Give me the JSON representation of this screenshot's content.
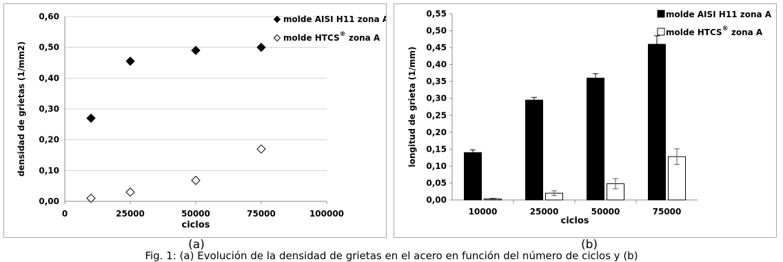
{
  "chart_data": [
    {
      "type": "scatter",
      "xlabel": "ciclos",
      "ylabel": "densidad de grietas (1/mm2)",
      "xlim": [
        0,
        100000
      ],
      "ylim": [
        0,
        0.6
      ],
      "x_ticks": [
        "0",
        "25000",
        "50000",
        "75000",
        "100000"
      ],
      "y_ticks": [
        "0,00",
        "0,10",
        "0,20",
        "0,30",
        "0,40",
        "0,50",
        "0,60"
      ],
      "grid": "horizontal",
      "legend_position": "top-right",
      "series": [
        {
          "name": "molde AISI H11 zona A",
          "marker": "filled-diamond",
          "color": "#000000",
          "points": [
            {
              "x": 10000,
              "y": 0.27
            },
            {
              "x": 25000,
              "y": 0.455
            },
            {
              "x": 50000,
              "y": 0.49
            },
            {
              "x": 75000,
              "y": 0.5
            }
          ]
        },
        {
          "name": "molde HTCS® zona A",
          "marker": "hollow-diamond",
          "color": "#000000",
          "points": [
            {
              "x": 10000,
              "y": 0.01
            },
            {
              "x": 25000,
              "y": 0.03
            },
            {
              "x": 50000,
              "y": 0.068
            },
            {
              "x": 75000,
              "y": 0.17
            }
          ]
        }
      ]
    },
    {
      "type": "bar",
      "xlabel": "ciclos",
      "ylabel": "longitud de grieta (1/mm)",
      "ylim": [
        0,
        0.55
      ],
      "categories": [
        "10000",
        "25000",
        "50000",
        "75000"
      ],
      "y_ticks": [
        "0,00",
        "0,05",
        "0,10",
        "0,15",
        "0,20",
        "0,25",
        "0,30",
        "0,35",
        "0,40",
        "0,45",
        "0,50",
        "0,55"
      ],
      "grid": "none",
      "legend_position": "top-right",
      "series": [
        {
          "name": "molde AISI H11 zona A",
          "fill": "#000000",
          "values": [
            0.14,
            0.295,
            0.36,
            0.46
          ],
          "errors": [
            0.008,
            0.008,
            0.013,
            0.025
          ]
        },
        {
          "name": "molde HTCS® zona A",
          "fill": "#ffffff",
          "values": [
            0.003,
            0.02,
            0.048,
            0.128
          ],
          "errors": [
            0.002,
            0.007,
            0.015,
            0.023
          ]
        }
      ]
    }
  ],
  "sublabels": {
    "a": "(a)",
    "b": "(b)"
  },
  "caption": "Fig. 1: (a) Evolución de la densidad de grietas en el acero en función del número de ciclos y (b)"
}
